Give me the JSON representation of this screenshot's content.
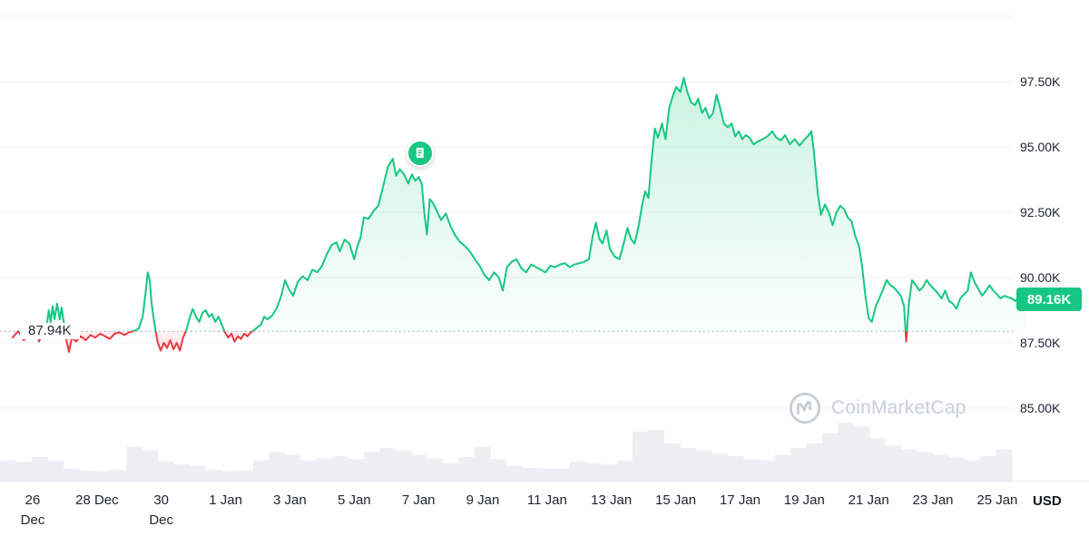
{
  "colors": {
    "green": "#16c784",
    "red": "#ea3943",
    "grid": "#f0f2f5",
    "volume": "#efeff3",
    "dotted": "#97a0ae",
    "axis_text": "#222531",
    "separator": "#e6e9ee",
    "watermark": "#c8cdd6",
    "badge_text": "#ffffff",
    "background": "#ffffff"
  },
  "watermark": {
    "text": "CoinMarketCap"
  },
  "chart_data": {
    "type": "line",
    "grid": "horizontal",
    "legend": "none",
    "ylim": [
      85,
      97.5
    ],
    "x_range_days": [
      -0.62,
      30.93
    ],
    "gridline_values": [
      100,
      97.5,
      95,
      92.5,
      90,
      87.5,
      85
    ],
    "y_axis": {
      "side": "right",
      "ticks": [
        {
          "label": "97.50K",
          "value": 97.5
        },
        {
          "label": "95.00K",
          "value": 95.0
        },
        {
          "label": "92.50K",
          "value": 92.5
        },
        {
          "label": "90.00K",
          "value": 90.0
        },
        {
          "label": "87.50K",
          "value": 87.5
        },
        {
          "label": "85.00K",
          "value": 85.0
        }
      ]
    },
    "x_axis": {
      "unit": "USD",
      "ticks": [
        {
          "lines": [
            "26",
            "Dec"
          ],
          "day": 0
        },
        {
          "lines": [
            "28 Dec"
          ],
          "day": 2
        },
        {
          "lines": [
            "30",
            "Dec"
          ],
          "day": 4
        },
        {
          "lines": [
            "1 Jan"
          ],
          "day": 6
        },
        {
          "lines": [
            "3 Jan"
          ],
          "day": 8
        },
        {
          "lines": [
            "5 Jan"
          ],
          "day": 10
        },
        {
          "lines": [
            "7 Jan"
          ],
          "day": 12
        },
        {
          "lines": [
            "9 Jan"
          ],
          "day": 14
        },
        {
          "lines": [
            "11 Jan"
          ],
          "day": 16
        },
        {
          "lines": [
            "13 Jan"
          ],
          "day": 18
        },
        {
          "lines": [
            "15 Jan"
          ],
          "day": 20
        },
        {
          "lines": [
            "17 Jan"
          ],
          "day": 22
        },
        {
          "lines": [
            "19 Jan"
          ],
          "day": 24
        },
        {
          "lines": [
            "21 Jan"
          ],
          "day": 26
        },
        {
          "lines": [
            "23 Jan"
          ],
          "day": 28
        },
        {
          "lines": [
            "25 Jan"
          ],
          "day": 30
        }
      ]
    },
    "reference_price": {
      "label": "87.94K",
      "value": 87.94
    },
    "current_price": {
      "label": "89.16K",
      "value": 89.16
    },
    "marker": {
      "type": "news-event",
      "day": 12.05,
      "price": 94.76
    },
    "series": [
      {
        "name": "price-usd-thousands",
        "points": [
          [
            -0.62,
            87.7
          ],
          [
            -0.45,
            87.95
          ],
          [
            -0.28,
            87.6
          ],
          [
            -0.12,
            87.8
          ],
          [
            0,
            87.9
          ],
          [
            0.12,
            87.95
          ],
          [
            0.2,
            87.55
          ],
          [
            0.3,
            87.9
          ],
          [
            0.42,
            88.0
          ],
          [
            0.5,
            88.75
          ],
          [
            0.56,
            88.3
          ],
          [
            0.62,
            88.9
          ],
          [
            0.68,
            88.4
          ],
          [
            0.76,
            89.0
          ],
          [
            0.84,
            88.4
          ],
          [
            0.9,
            88.85
          ],
          [
            0.98,
            88.2
          ],
          [
            1.05,
            87.6
          ],
          [
            1.13,
            87.15
          ],
          [
            1.22,
            87.7
          ],
          [
            1.35,
            87.55
          ],
          [
            1.5,
            87.75
          ],
          [
            1.65,
            87.6
          ],
          [
            1.8,
            87.8
          ],
          [
            1.95,
            87.7
          ],
          [
            2.1,
            87.85
          ],
          [
            2.25,
            87.75
          ],
          [
            2.4,
            87.65
          ],
          [
            2.55,
            87.85
          ],
          [
            2.7,
            87.9
          ],
          [
            2.85,
            87.8
          ],
          [
            3.0,
            87.9
          ],
          [
            3.15,
            87.95
          ],
          [
            3.3,
            88.05
          ],
          [
            3.42,
            88.5
          ],
          [
            3.5,
            89.3
          ],
          [
            3.58,
            90.2
          ],
          [
            3.64,
            89.9
          ],
          [
            3.7,
            89.0
          ],
          [
            3.78,
            88.3
          ],
          [
            3.88,
            87.55
          ],
          [
            3.98,
            87.2
          ],
          [
            4.08,
            87.5
          ],
          [
            4.18,
            87.3
          ],
          [
            4.28,
            87.6
          ],
          [
            4.38,
            87.25
          ],
          [
            4.48,
            87.5
          ],
          [
            4.58,
            87.2
          ],
          [
            4.68,
            87.7
          ],
          [
            4.78,
            88.0
          ],
          [
            4.88,
            88.45
          ],
          [
            4.98,
            88.8
          ],
          [
            5.08,
            88.5
          ],
          [
            5.18,
            88.3
          ],
          [
            5.28,
            88.65
          ],
          [
            5.38,
            88.75
          ],
          [
            5.48,
            88.5
          ],
          [
            5.58,
            88.6
          ],
          [
            5.68,
            88.3
          ],
          [
            5.78,
            88.5
          ],
          [
            5.88,
            88.2
          ],
          [
            5.98,
            87.9
          ],
          [
            6.08,
            87.7
          ],
          [
            6.18,
            87.85
          ],
          [
            6.28,
            87.55
          ],
          [
            6.38,
            87.75
          ],
          [
            6.48,
            87.65
          ],
          [
            6.58,
            87.85
          ],
          [
            6.68,
            87.75
          ],
          [
            6.78,
            87.9
          ],
          [
            6.9,
            88.0
          ],
          [
            7.0,
            88.1
          ],
          [
            7.1,
            88.2
          ],
          [
            7.2,
            88.5
          ],
          [
            7.3,
            88.4
          ],
          [
            7.45,
            88.55
          ],
          [
            7.6,
            88.85
          ],
          [
            7.73,
            89.3
          ],
          [
            7.85,
            89.9
          ],
          [
            7.95,
            89.6
          ],
          [
            8.1,
            89.3
          ],
          [
            8.25,
            89.85
          ],
          [
            8.4,
            90.05
          ],
          [
            8.55,
            89.9
          ],
          [
            8.7,
            90.3
          ],
          [
            8.85,
            90.2
          ],
          [
            9.0,
            90.45
          ],
          [
            9.15,
            90.9
          ],
          [
            9.3,
            91.25
          ],
          [
            9.45,
            91.35
          ],
          [
            9.55,
            91.0
          ],
          [
            9.7,
            91.45
          ],
          [
            9.85,
            91.3
          ],
          [
            10.0,
            90.7
          ],
          [
            10.1,
            91.2
          ],
          [
            10.2,
            91.55
          ],
          [
            10.3,
            92.3
          ],
          [
            10.45,
            92.25
          ],
          [
            10.6,
            92.55
          ],
          [
            10.75,
            92.75
          ],
          [
            10.9,
            93.5
          ],
          [
            11.05,
            94.25
          ],
          [
            11.2,
            94.55
          ],
          [
            11.3,
            93.9
          ],
          [
            11.42,
            94.15
          ],
          [
            11.55,
            93.95
          ],
          [
            11.68,
            93.6
          ],
          [
            11.8,
            93.95
          ],
          [
            11.9,
            93.7
          ],
          [
            12.0,
            93.85
          ],
          [
            12.1,
            93.6
          ],
          [
            12.18,
            92.5
          ],
          [
            12.26,
            91.65
          ],
          [
            12.35,
            93.0
          ],
          [
            12.45,
            92.85
          ],
          [
            12.55,
            92.6
          ],
          [
            12.7,
            92.2
          ],
          [
            12.85,
            92.45
          ],
          [
            13.0,
            91.95
          ],
          [
            13.15,
            91.6
          ],
          [
            13.3,
            91.35
          ],
          [
            13.45,
            91.2
          ],
          [
            13.6,
            91.0
          ],
          [
            13.75,
            90.7
          ],
          [
            13.9,
            90.45
          ],
          [
            14.05,
            90.1
          ],
          [
            14.2,
            89.9
          ],
          [
            14.35,
            90.2
          ],
          [
            14.5,
            90.0
          ],
          [
            14.62,
            89.5
          ],
          [
            14.75,
            90.4
          ],
          [
            14.9,
            90.6
          ],
          [
            15.05,
            90.7
          ],
          [
            15.2,
            90.35
          ],
          [
            15.35,
            90.2
          ],
          [
            15.5,
            90.5
          ],
          [
            15.65,
            90.4
          ],
          [
            15.8,
            90.3
          ],
          [
            15.95,
            90.2
          ],
          [
            16.1,
            90.45
          ],
          [
            16.25,
            90.4
          ],
          [
            16.4,
            90.5
          ],
          [
            16.55,
            90.55
          ],
          [
            16.7,
            90.4
          ],
          [
            16.85,
            90.5
          ],
          [
            17.0,
            90.55
          ],
          [
            17.15,
            90.6
          ],
          [
            17.3,
            90.7
          ],
          [
            17.42,
            91.6
          ],
          [
            17.52,
            92.1
          ],
          [
            17.62,
            91.5
          ],
          [
            17.72,
            91.3
          ],
          [
            17.85,
            91.8
          ],
          [
            17.95,
            91.1
          ],
          [
            18.1,
            90.8
          ],
          [
            18.25,
            90.7
          ],
          [
            18.38,
            91.3
          ],
          [
            18.5,
            91.9
          ],
          [
            18.6,
            91.5
          ],
          [
            18.72,
            91.3
          ],
          [
            18.85,
            92.0
          ],
          [
            18.95,
            92.75
          ],
          [
            19.05,
            93.3
          ],
          [
            19.15,
            93.05
          ],
          [
            19.25,
            94.5
          ],
          [
            19.35,
            95.7
          ],
          [
            19.45,
            95.35
          ],
          [
            19.57,
            95.9
          ],
          [
            19.68,
            95.3
          ],
          [
            19.8,
            96.5
          ],
          [
            19.92,
            97.0
          ],
          [
            20.02,
            97.3
          ],
          [
            20.14,
            97.1
          ],
          [
            20.25,
            97.65
          ],
          [
            20.36,
            97.1
          ],
          [
            20.48,
            96.7
          ],
          [
            20.6,
            96.6
          ],
          [
            20.7,
            96.85
          ],
          [
            20.82,
            96.3
          ],
          [
            20.93,
            96.5
          ],
          [
            21.04,
            96.1
          ],
          [
            21.16,
            96.3
          ],
          [
            21.27,
            97.0
          ],
          [
            21.38,
            96.5
          ],
          [
            21.5,
            95.9
          ],
          [
            21.62,
            95.75
          ],
          [
            21.74,
            95.9
          ],
          [
            21.85,
            95.4
          ],
          [
            21.96,
            95.6
          ],
          [
            22.07,
            95.3
          ],
          [
            22.18,
            95.45
          ],
          [
            22.3,
            95.35
          ],
          [
            22.42,
            95.1
          ],
          [
            22.55,
            95.2
          ],
          [
            22.7,
            95.3
          ],
          [
            22.85,
            95.4
          ],
          [
            23.0,
            95.6
          ],
          [
            23.13,
            95.35
          ],
          [
            23.27,
            95.25
          ],
          [
            23.4,
            95.45
          ],
          [
            23.55,
            95.1
          ],
          [
            23.7,
            95.3
          ],
          [
            23.85,
            95.05
          ],
          [
            23.98,
            95.25
          ],
          [
            24.1,
            95.4
          ],
          [
            24.22,
            95.6
          ],
          [
            24.3,
            94.8
          ],
          [
            24.42,
            93.2
          ],
          [
            24.52,
            92.4
          ],
          [
            24.64,
            92.8
          ],
          [
            24.76,
            92.5
          ],
          [
            24.88,
            92.0
          ],
          [
            25.0,
            92.5
          ],
          [
            25.12,
            92.75
          ],
          [
            25.24,
            92.6
          ],
          [
            25.35,
            92.3
          ],
          [
            25.47,
            92.15
          ],
          [
            25.58,
            91.6
          ],
          [
            25.7,
            91.2
          ],
          [
            25.8,
            90.4
          ],
          [
            25.9,
            89.3
          ],
          [
            26.0,
            88.45
          ],
          [
            26.1,
            88.3
          ],
          [
            26.22,
            88.9
          ],
          [
            26.33,
            89.2
          ],
          [
            26.45,
            89.55
          ],
          [
            26.56,
            89.9
          ],
          [
            26.68,
            89.7
          ],
          [
            26.8,
            89.6
          ],
          [
            26.9,
            89.45
          ],
          [
            27.0,
            89.3
          ],
          [
            27.1,
            88.9
          ],
          [
            27.17,
            87.55
          ],
          [
            27.25,
            89.0
          ],
          [
            27.35,
            89.9
          ],
          [
            27.47,
            89.7
          ],
          [
            27.58,
            89.5
          ],
          [
            27.7,
            89.65
          ],
          [
            27.8,
            89.9
          ],
          [
            27.92,
            89.7
          ],
          [
            28.04,
            89.55
          ],
          [
            28.15,
            89.4
          ],
          [
            28.27,
            89.2
          ],
          [
            28.38,
            89.5
          ],
          [
            28.5,
            89.1
          ],
          [
            28.62,
            89.0
          ],
          [
            28.73,
            88.8
          ],
          [
            28.85,
            89.2
          ],
          [
            28.96,
            89.35
          ],
          [
            29.08,
            89.5
          ],
          [
            29.18,
            90.2
          ],
          [
            29.3,
            89.8
          ],
          [
            29.42,
            89.55
          ],
          [
            29.53,
            89.3
          ],
          [
            29.65,
            89.5
          ],
          [
            29.76,
            89.7
          ],
          [
            29.88,
            89.5
          ],
          [
            30.0,
            89.35
          ],
          [
            30.1,
            89.2
          ],
          [
            30.22,
            89.3
          ],
          [
            30.33,
            89.25
          ],
          [
            30.45,
            89.2
          ],
          [
            30.56,
            89.1
          ],
          [
            30.7,
            89.25
          ],
          [
            30.87,
            89.16
          ]
        ]
      }
    ],
    "volume": [
      0.3,
      0.28,
      0.35,
      0.3,
      0.18,
      0.15,
      0.14,
      0.16,
      0.5,
      0.45,
      0.28,
      0.24,
      0.22,
      0.16,
      0.14,
      0.15,
      0.3,
      0.42,
      0.38,
      0.3,
      0.33,
      0.36,
      0.32,
      0.42,
      0.48,
      0.45,
      0.38,
      0.33,
      0.26,
      0.35,
      0.5,
      0.32,
      0.22,
      0.19,
      0.18,
      0.18,
      0.28,
      0.26,
      0.24,
      0.3,
      0.72,
      0.75,
      0.55,
      0.48,
      0.45,
      0.4,
      0.36,
      0.32,
      0.3,
      0.38,
      0.48,
      0.55,
      0.7,
      0.85,
      0.8,
      0.62,
      0.52,
      0.46,
      0.42,
      0.38,
      0.34,
      0.3,
      0.36,
      0.46
    ]
  }
}
